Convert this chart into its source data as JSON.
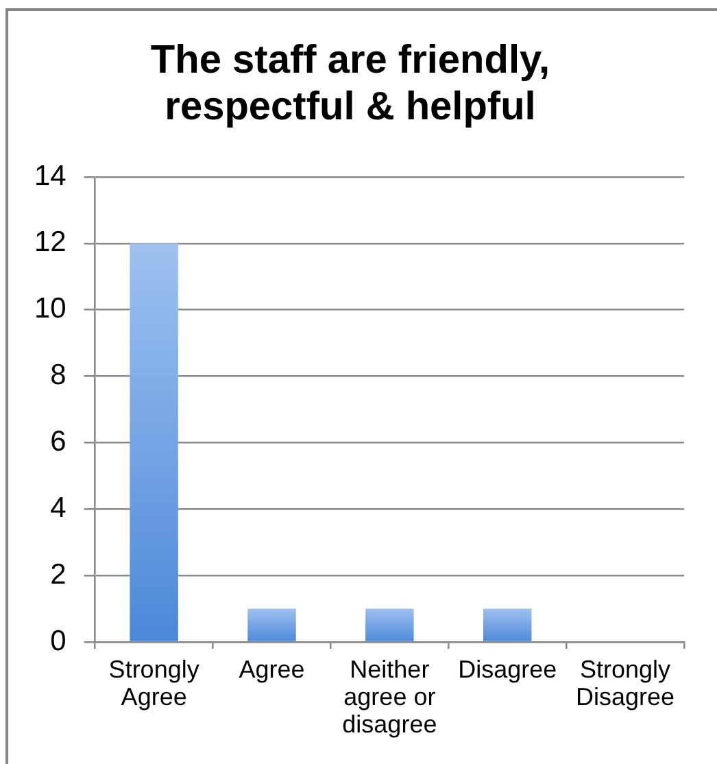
{
  "chart_data": {
    "type": "bar",
    "title": "The staff are friendly, respectful & helpful",
    "categories": [
      "Strongly Agree",
      "Agree",
      "Neither agree or disagree",
      "Disagree",
      "Strongly Disagree"
    ],
    "values": [
      12,
      1,
      1,
      1,
      0
    ],
    "color": "#6aa0e8",
    "ylim": [
      0,
      14
    ],
    "yticks": [
      0,
      2,
      4,
      6,
      8,
      10,
      12,
      14
    ],
    "grid": "y"
  }
}
